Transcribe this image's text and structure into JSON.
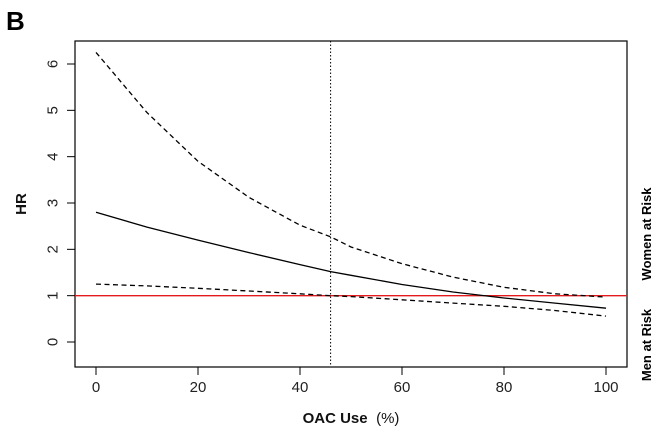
{
  "panel_label": "B",
  "chart_data": {
    "type": "line",
    "title": "",
    "xlabel": "OAC Use",
    "xlabel_unit": "(%)",
    "ylabel": "HR",
    "xlim": [
      0,
      100
    ],
    "ylim": [
      0,
      6.3
    ],
    "x_ticks": [
      0,
      20,
      40,
      60,
      80,
      100
    ],
    "y_ticks": [
      0,
      1,
      2,
      3,
      4,
      5,
      6
    ],
    "grid": false,
    "right_labels": {
      "upper": "Women at Risk",
      "lower": "Men at Risk"
    },
    "reference_line": {
      "y": 1,
      "color": "#e31a1c"
    },
    "vertical_line": {
      "x": 46,
      "style": "dotted"
    },
    "series": [
      {
        "role": "estimate",
        "style": "solid",
        "x": [
          0,
          10,
          20,
          30,
          40,
          46,
          50,
          60,
          70,
          80,
          90,
          100
        ],
        "y": [
          2.8,
          2.48,
          2.2,
          1.93,
          1.67,
          1.52,
          1.44,
          1.24,
          1.08,
          0.95,
          0.84,
          0.73
        ]
      },
      {
        "role": "upper_ci",
        "style": "dashed",
        "x": [
          0,
          10,
          20,
          30,
          40,
          46,
          50,
          60,
          70,
          80,
          90,
          100
        ],
        "y": [
          6.25,
          4.95,
          3.9,
          3.12,
          2.52,
          2.27,
          2.05,
          1.69,
          1.4,
          1.18,
          1.04,
          0.97
        ]
      },
      {
        "role": "lower_ci",
        "style": "dashed",
        "x": [
          0,
          10,
          20,
          30,
          40,
          46,
          50,
          60,
          70,
          80,
          90,
          100
        ],
        "y": [
          1.25,
          1.21,
          1.16,
          1.1,
          1.04,
          1.0,
          0.98,
          0.91,
          0.84,
          0.77,
          0.68,
          0.56
        ]
      }
    ]
  }
}
